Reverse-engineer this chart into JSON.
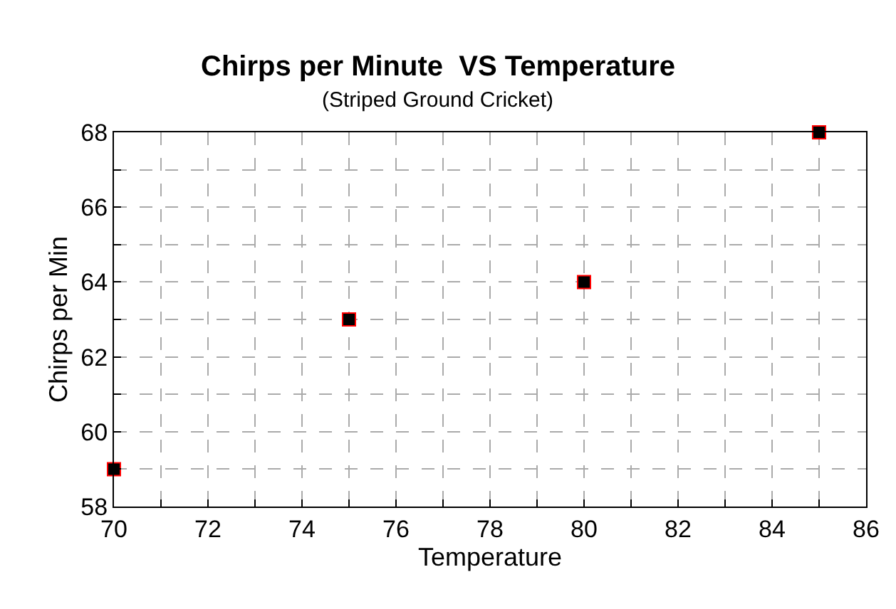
{
  "chart_data": {
    "type": "scatter",
    "title": "Chirps per Minute  VS Temperature",
    "subtitle": "(Striped Ground Cricket)",
    "xlabel": "Temperature",
    "ylabel": "Chirps per Min",
    "x": [
      70,
      75,
      80,
      85
    ],
    "series": [
      {
        "color": "#000000",
        "values": [
          59,
          63,
          64,
          68
        ]
      }
    ],
    "marker": "square",
    "xlim": [
      70,
      86
    ],
    "ylim": [
      58,
      68
    ],
    "xticks": [
      70,
      {
        "value": 71,
        "label": null
      },
      72,
      {
        "value": 73,
        "label": null
      },
      74,
      {
        "value": 75,
        "label": null
      },
      76,
      {
        "value": 77,
        "label": null
      },
      78,
      {
        "value": 79,
        "label": null
      },
      80,
      {
        "value": 81,
        "label": null
      },
      82,
      {
        "value": 83,
        "label": null
      },
      84,
      {
        "value": 85,
        "label": null
      },
      86
    ],
    "yticks": [
      58,
      {
        "value": 59,
        "label": null
      },
      60,
      {
        "value": 61,
        "label": null
      },
      62,
      {
        "value": 63,
        "label": null
      },
      64,
      {
        "value": 65,
        "label": null
      },
      66,
      {
        "value": 67,
        "label": null
      },
      68
    ],
    "grid": true
  }
}
